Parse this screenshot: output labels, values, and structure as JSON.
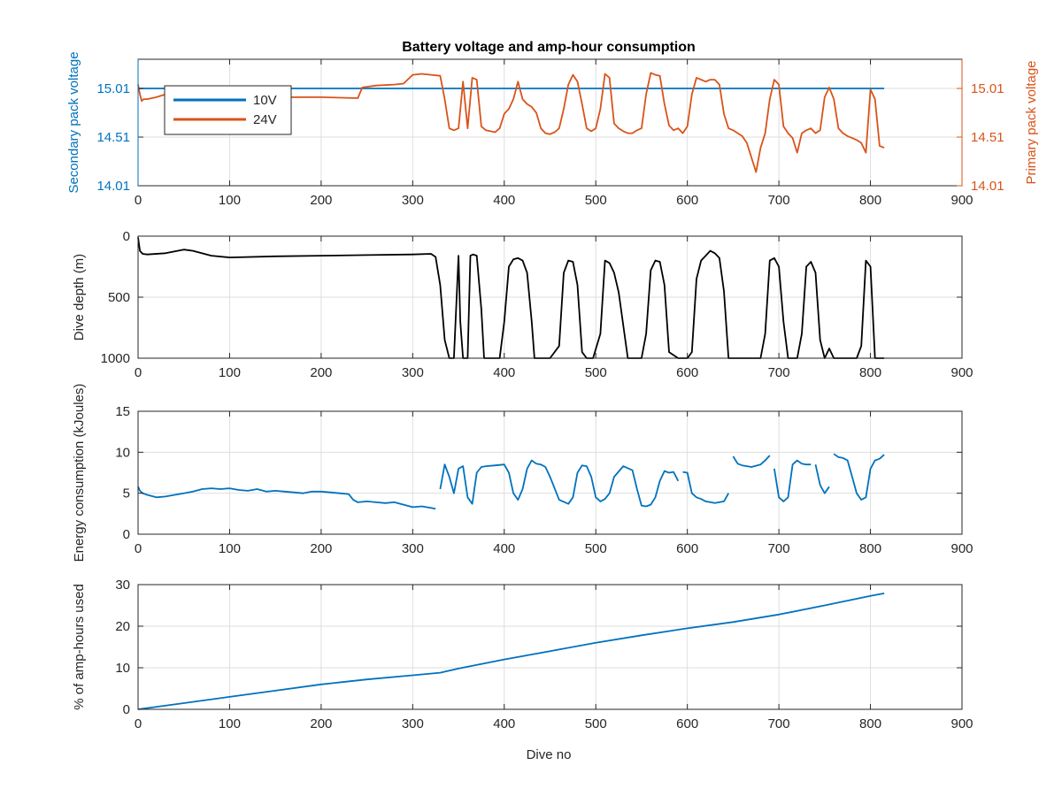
{
  "figure": {
    "title": "Battery voltage and amp-hour consumption",
    "xlabel": "Dive no"
  },
  "colors": {
    "blue": "#0072BD",
    "orange": "#D95319",
    "black": "#000000",
    "grid": "#dedede",
    "axis": "#262626"
  },
  "chart_data": [
    {
      "type": "line",
      "title": "Battery voltage and amp-hour consumption",
      "xlim": [
        0,
        900
      ],
      "xticks": [
        "0",
        "100",
        "200",
        "300",
        "400",
        "500",
        "600",
        "700",
        "800",
        "900"
      ],
      "ylabel_left": "Secondary pack voltage",
      "ylabel_right": "Primary pack voltage",
      "ylim_left": [
        14.01,
        15.31
      ],
      "ylim_right": [
        14.01,
        15.31
      ],
      "yticks_left": [
        "14.01",
        "14.51",
        "15.01"
      ],
      "yticks_right": [
        "14.01",
        "14.51",
        "15.01"
      ],
      "legend": {
        "position": "top-left",
        "entries": [
          "10V",
          "24V"
        ]
      },
      "grid": true,
      "series": [
        {
          "name": "10V",
          "axis": "left",
          "color": "blue",
          "x": [
            0,
            815
          ],
          "y": [
            15.01,
            15.01
          ]
        },
        {
          "name": "24V",
          "axis": "right",
          "color": "orange",
          "x": [
            0,
            2,
            4,
            6,
            10,
            20,
            30,
            60,
            100,
            150,
            200,
            240,
            245,
            260,
            280,
            290,
            300,
            310,
            320,
            330,
            335,
            340,
            345,
            350,
            355,
            360,
            365,
            370,
            375,
            380,
            385,
            390,
            395,
            400,
            405,
            410,
            415,
            420,
            425,
            430,
            435,
            440,
            445,
            450,
            455,
            460,
            465,
            470,
            475,
            480,
            485,
            490,
            495,
            500,
            505,
            510,
            515,
            520,
            525,
            530,
            535,
            540,
            545,
            550,
            555,
            560,
            565,
            570,
            575,
            580,
            585,
            590,
            595,
            600,
            605,
            610,
            615,
            620,
            625,
            630,
            635,
            640,
            645,
            650,
            655,
            660,
            665,
            670,
            675,
            680,
            685,
            690,
            695,
            700,
            705,
            710,
            715,
            720,
            725,
            730,
            735,
            740,
            745,
            750,
            755,
            760,
            765,
            770,
            775,
            780,
            785,
            790,
            795,
            800,
            805,
            810,
            815
          ],
          "y": [
            15.05,
            14.95,
            14.88,
            14.9,
            14.9,
            14.92,
            14.95,
            14.93,
            14.93,
            14.92,
            14.92,
            14.91,
            15.02,
            15.04,
            15.05,
            15.06,
            15.15,
            15.16,
            15.15,
            15.14,
            14.9,
            14.6,
            14.58,
            14.6,
            15.08,
            14.6,
            15.12,
            15.1,
            14.62,
            14.58,
            14.57,
            14.56,
            14.6,
            14.75,
            14.8,
            14.9,
            15.08,
            14.9,
            14.85,
            14.82,
            14.76,
            14.6,
            14.55,
            14.54,
            14.56,
            14.6,
            14.8,
            15.05,
            15.15,
            15.08,
            14.85,
            14.6,
            14.57,
            14.6,
            14.8,
            15.16,
            15.12,
            14.65,
            14.6,
            14.57,
            14.55,
            14.55,
            14.58,
            14.6,
            14.95,
            15.17,
            15.15,
            15.14,
            14.85,
            14.63,
            14.58,
            14.6,
            14.55,
            14.62,
            14.95,
            15.12,
            15.1,
            15.08,
            15.1,
            15.1,
            15.05,
            14.75,
            14.6,
            14.58,
            14.55,
            14.52,
            14.45,
            14.3,
            14.15,
            14.4,
            14.55,
            14.9,
            15.1,
            15.05,
            14.62,
            14.55,
            14.5,
            14.35,
            14.55,
            14.58,
            14.6,
            14.55,
            14.58,
            14.92,
            15.02,
            14.9,
            14.6,
            14.55,
            14.52,
            14.5,
            14.48,
            14.45,
            14.35,
            15.0,
            14.9,
            14.42,
            14.4
          ]
        }
      ]
    },
    {
      "type": "line",
      "ylabel": "Dive depth (m)",
      "xlim": [
        0,
        900
      ],
      "ylim": [
        0,
        1000
      ],
      "y_reversed": true,
      "yticks": [
        "0",
        "500",
        "1000"
      ],
      "xticks": [
        "0",
        "100",
        "200",
        "300",
        "400",
        "500",
        "600",
        "700",
        "800",
        "900"
      ],
      "grid": true,
      "series": [
        {
          "color": "black",
          "x": [
            0,
            2,
            5,
            10,
            30,
            50,
            60,
            80,
            100,
            150,
            200,
            250,
            300,
            320,
            325,
            330,
            335,
            340,
            345,
            350,
            352,
            355,
            360,
            363,
            366,
            370,
            375,
            378,
            382,
            395,
            400,
            405,
            410,
            415,
            420,
            425,
            430,
            433,
            437,
            450,
            460,
            465,
            470,
            475,
            480,
            485,
            490,
            493,
            497,
            505,
            510,
            515,
            520,
            525,
            535,
            540,
            545,
            550,
            555,
            560,
            565,
            570,
            575,
            580,
            590,
            600,
            605,
            610,
            615,
            620,
            625,
            630,
            635,
            640,
            645,
            650,
            655,
            660,
            665,
            670,
            675,
            680,
            685,
            690,
            695,
            700,
            705,
            710,
            715,
            720,
            725,
            730,
            735,
            740,
            745,
            750,
            755,
            760,
            765,
            770,
            775,
            780,
            785,
            790,
            795,
            800,
            805,
            810,
            815
          ],
          "y": [
            10,
            120,
            145,
            150,
            140,
            110,
            120,
            160,
            175,
            165,
            160,
            155,
            150,
            145,
            170,
            400,
            850,
            1000,
            1000,
            160,
            700,
            1000,
            1000,
            160,
            150,
            160,
            600,
            1000,
            1000,
            1000,
            700,
            250,
            190,
            180,
            200,
            300,
            700,
            1000,
            1000,
            1000,
            900,
            300,
            200,
            210,
            400,
            950,
            1000,
            1000,
            1000,
            800,
            200,
            220,
            300,
            460,
            1000,
            1000,
            1000,
            1000,
            800,
            280,
            200,
            210,
            400,
            950,
            1000,
            1000,
            950,
            350,
            200,
            160,
            120,
            140,
            180,
            450,
            1000,
            1000,
            1000,
            1000,
            1000,
            1000,
            1000,
            1000,
            800,
            200,
            180,
            250,
            700,
            1000,
            1000,
            1000,
            800,
            250,
            210,
            300,
            850,
            1000,
            920,
            1000,
            1000,
            1000,
            1000,
            1000,
            1000,
            900,
            200,
            250,
            1000,
            1000,
            1000
          ]
        }
      ]
    },
    {
      "type": "line",
      "ylabel": "Energy consumption (kJoules)",
      "xlim": [
        0,
        900
      ],
      "ylim": [
        0,
        15
      ],
      "yticks": [
        "0",
        "5",
        "10",
        "15"
      ],
      "xticks": [
        "0",
        "100",
        "200",
        "300",
        "400",
        "500",
        "600",
        "700",
        "800",
        "900"
      ],
      "grid": true,
      "series": [
        {
          "color": "blue",
          "x": [
            0,
            2,
            5,
            10,
            20,
            30,
            40,
            50,
            60,
            70,
            80,
            90,
            100,
            110,
            120,
            130,
            140,
            150,
            160,
            170,
            180,
            190,
            200,
            210,
            220,
            230,
            235,
            240,
            250,
            260,
            270,
            280,
            290,
            300,
            310,
            320,
            325,
            null,
            330,
            335,
            340,
            345,
            350,
            355,
            360,
            365,
            370,
            375,
            380,
            390,
            400,
            405,
            410,
            415,
            420,
            425,
            430,
            435,
            440,
            445,
            450,
            460,
            470,
            475,
            480,
            485,
            490,
            495,
            500,
            505,
            510,
            515,
            520,
            530,
            540,
            545,
            550,
            555,
            560,
            565,
            570,
            575,
            580,
            585,
            590,
            null,
            595,
            600,
            605,
            610,
            615,
            620,
            630,
            640,
            645,
            null,
            650,
            655,
            660,
            670,
            680,
            685,
            690,
            null,
            695,
            700,
            705,
            710,
            715,
            720,
            725,
            730,
            735,
            null,
            740,
            745,
            750,
            755,
            null,
            760,
            765,
            770,
            775,
            780,
            785,
            790,
            795,
            800,
            805,
            810,
            815
          ],
          "y": [
            5.8,
            5.3,
            5.0,
            4.8,
            4.5,
            4.6,
            4.8,
            5.0,
            5.2,
            5.5,
            5.6,
            5.5,
            5.6,
            5.4,
            5.3,
            5.5,
            5.2,
            5.3,
            5.2,
            5.1,
            5.0,
            5.2,
            5.2,
            5.1,
            5.0,
            4.9,
            4.2,
            3.9,
            4.0,
            3.9,
            3.8,
            3.9,
            3.6,
            3.3,
            3.4,
            3.2,
            3.1,
            null,
            5.5,
            8.5,
            7.0,
            5.0,
            8.0,
            8.3,
            4.5,
            3.7,
            7.5,
            8.2,
            8.3,
            8.4,
            8.5,
            7.5,
            5.0,
            4.2,
            5.5,
            8.0,
            9.0,
            8.6,
            8.5,
            8.2,
            7.0,
            4.2,
            3.7,
            4.5,
            7.5,
            8.4,
            8.3,
            7.0,
            4.5,
            4.0,
            4.3,
            5.0,
            7.0,
            8.3,
            7.8,
            5.5,
            3.5,
            3.4,
            3.6,
            4.5,
            6.5,
            7.7,
            7.5,
            7.6,
            6.5,
            null,
            7.6,
            7.5,
            5.0,
            4.5,
            4.3,
            4.0,
            3.8,
            4.0,
            5.0,
            null,
            9.5,
            8.6,
            8.4,
            8.2,
            8.5,
            9.0,
            9.6,
            null,
            8.0,
            4.5,
            4.0,
            4.5,
            8.5,
            9.0,
            8.6,
            8.5,
            8.5,
            null,
            8.5,
            6.0,
            5.0,
            5.8,
            null,
            9.8,
            9.4,
            9.3,
            9.0,
            7.0,
            5.0,
            4.2,
            4.5,
            8.0,
            9.0,
            9.2,
            9.7
          ]
        }
      ]
    },
    {
      "type": "line",
      "ylabel": "% of amp-hours used",
      "xlabel": "Dive no",
      "xlim": [
        0,
        900
      ],
      "ylim": [
        0,
        30
      ],
      "yticks": [
        "0",
        "10",
        "20",
        "30"
      ],
      "xticks": [
        "0",
        "100",
        "200",
        "300",
        "400",
        "500",
        "600",
        "700",
        "800",
        "900"
      ],
      "grid": true,
      "series": [
        {
          "color": "blue",
          "x": [
            0,
            50,
            100,
            150,
            200,
            250,
            300,
            330,
            350,
            400,
            450,
            500,
            550,
            600,
            650,
            700,
            750,
            800,
            815
          ],
          "y": [
            0,
            1.5,
            3.0,
            4.5,
            6.0,
            7.2,
            8.2,
            8.8,
            9.8,
            12.0,
            14.0,
            16.0,
            17.8,
            19.5,
            21.0,
            22.8,
            25.0,
            27.3,
            27.9
          ]
        }
      ]
    }
  ]
}
